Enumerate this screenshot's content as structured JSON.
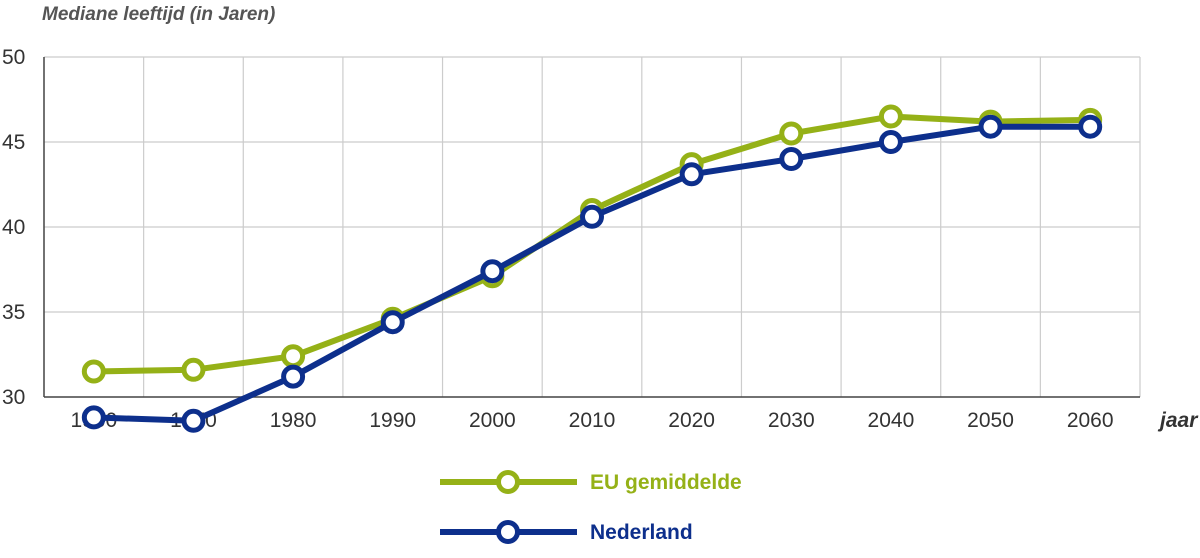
{
  "chart_data": {
    "type": "line",
    "ylabel": "Mediane leeftijd (in Jaren)",
    "xlabel": "jaar",
    "x": [
      1960,
      1970,
      1980,
      1990,
      2000,
      2010,
      2020,
      2030,
      2040,
      2050,
      2060
    ],
    "x_tick_labels": [
      "1960",
      "1970",
      "1980",
      "1990",
      "2000",
      "2010",
      "2020",
      "2030",
      "2040",
      "2050",
      "2060"
    ],
    "y_ticks": [
      30,
      35,
      40,
      45,
      50
    ],
    "y_tick_labels": [
      "30",
      "35",
      "40",
      "45",
      "50"
    ],
    "ylim": [
      30,
      50
    ],
    "xlim": [
      1955,
      2065
    ],
    "grid": true,
    "legend_position": "bottom-center",
    "series": [
      {
        "name": "EU gemiddelde",
        "color": "#95b117",
        "values": [
          31.5,
          31.6,
          32.4,
          34.6,
          37.1,
          41.0,
          43.7,
          45.5,
          46.5,
          46.2,
          46.3
        ]
      },
      {
        "name": "Nederland",
        "color": "#0d2f8c",
        "values": [
          28.8,
          28.6,
          31.2,
          34.4,
          37.4,
          40.6,
          43.1,
          44.0,
          45.0,
          45.9,
          45.9
        ]
      }
    ]
  }
}
